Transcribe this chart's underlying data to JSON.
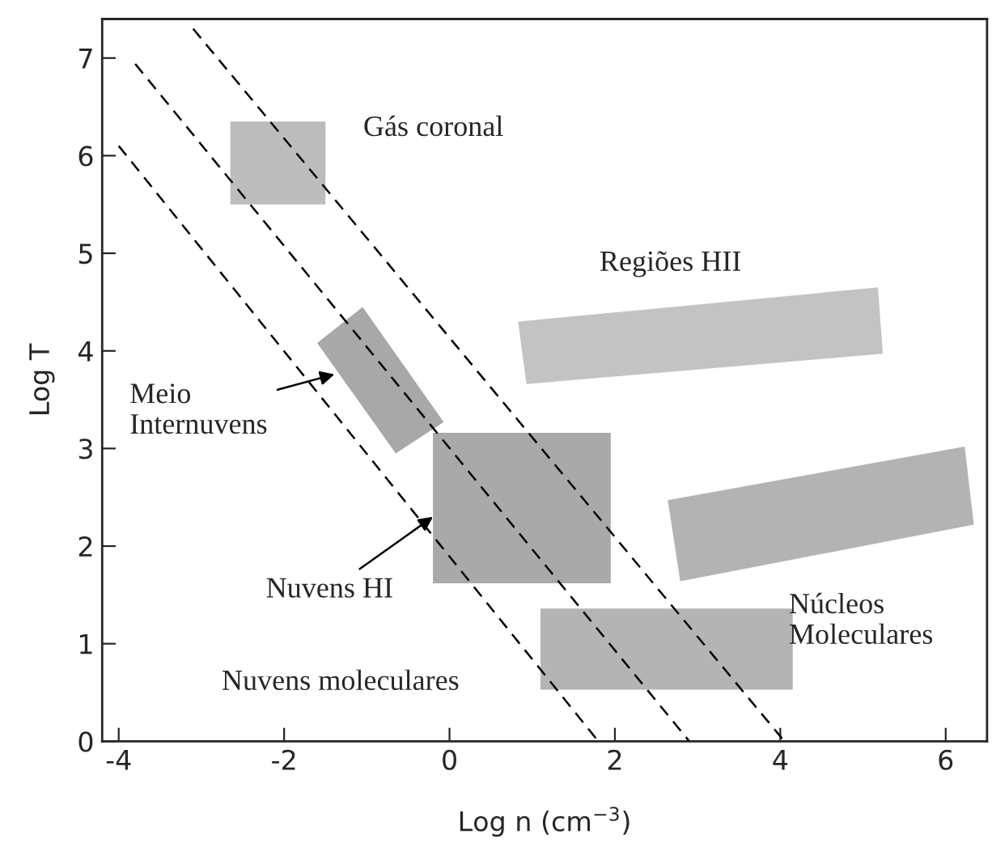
{
  "chart_data": {
    "type": "area",
    "xlabel": "Log n (cm$^{−3}$)",
    "ylabel": "Log T",
    "xlim": [
      -4.2,
      6.5
    ],
    "ylim": [
      0,
      7.4
    ],
    "xticks": [
      -4,
      -2,
      0,
      2,
      4,
      6
    ],
    "yticks": [
      0,
      1,
      2,
      3,
      4,
      5,
      6,
      7
    ],
    "grid": false,
    "legend": false,
    "series": [
      {
        "color": "#bdbbbc",
        "x": [
          -2.65,
          -2.65,
          -1.5,
          -1.5
        ],
        "values": [
          5.5,
          6.35,
          6.35,
          5.5
        ]
      },
      {
        "color": "#a9a7a8",
        "x": [
          -1.6,
          -1.05,
          -0.07,
          -0.65
        ],
        "values": [
          4.08,
          4.45,
          3.27,
          2.95
        ]
      },
      {
        "color": "#aaa8a9",
        "x": [
          -0.2,
          -0.2,
          1.95,
          1.95
        ],
        "values": [
          1.62,
          3.16,
          3.16,
          1.62
        ]
      },
      {
        "color": "#b5b3b4",
        "x": [
          1.1,
          1.1,
          4.15,
          4.15
        ],
        "values": [
          0.53,
          1.36,
          1.36,
          0.53
        ]
      },
      {
        "color": "#c4c2c3",
        "x": [
          0.83,
          5.18,
          5.24,
          0.93
        ],
        "values": [
          4.3,
          4.65,
          3.97,
          3.66
        ]
      },
      {
        "color": "#b4b2b3",
        "x": [
          2.64,
          6.23,
          6.34,
          2.79
        ],
        "values": [
          2.47,
          3.02,
          2.22,
          1.64
        ]
      },
      {
        "type": "line",
        "color": "#000000",
        "line_style": "dashed",
        "x": [
          -4,
          1.8
        ],
        "values": [
          6.1,
          0
        ]
      },
      {
        "type": "line",
        "color": "#000000",
        "line_style": "dashed",
        "x": [
          -3.8,
          2.9
        ],
        "values": [
          6.94,
          0
        ]
      },
      {
        "type": "line",
        "color": "#000000",
        "line_style": "dashed",
        "x": [
          -3.1,
          4.05
        ],
        "values": [
          7.3,
          0
        ]
      }
    ],
    "annotations": [
      "Gás coronal",
      "Regiões HII",
      {
        "text": "Meio\nInternuvens",
        "x": -1.39,
        "y": 3.76
      },
      {
        "text": "Nuvens HI",
        "x": -0.2,
        "y": 2.3
      },
      "Nuvens moleculares",
      "Núcleos\nMoleculares"
    ]
  }
}
